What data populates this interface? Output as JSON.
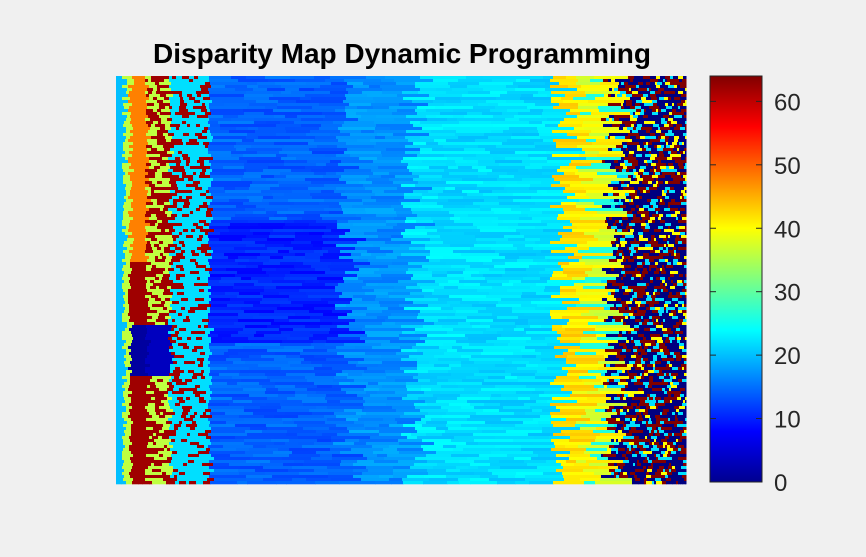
{
  "chart_data": {
    "type": "heatmap",
    "title": "Disparity Map Dynamic Programming",
    "xlabel": "",
    "ylabel": "",
    "colormap": "jet",
    "color_range": [
      0,
      64
    ],
    "colorbar": {
      "placement": "right",
      "ticks": [
        0,
        10,
        20,
        30,
        40,
        50,
        60
      ],
      "tick_labels": [
        "0",
        "10",
        "20",
        "30",
        "40",
        "50",
        "60"
      ]
    },
    "axes_visible": false,
    "regions": [
      {
        "name": "left edge columns",
        "value_range": [
          0,
          64
        ]
      },
      {
        "name": "center-left dark blue region",
        "approx_value": 8
      },
      {
        "name": "center region",
        "approx_value": 16
      },
      {
        "name": "center-right light region",
        "approx_value": 22
      },
      {
        "name": "right yellow band",
        "approx_value": 40
      },
      {
        "name": "far right noisy region",
        "value_range": [
          0,
          64
        ]
      }
    ]
  }
}
